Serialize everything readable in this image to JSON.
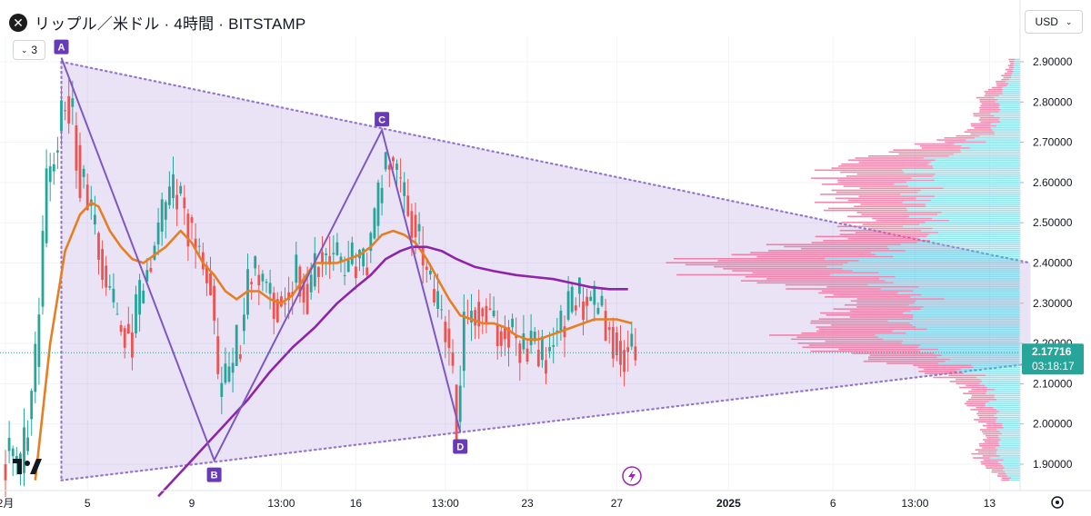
{
  "header": {
    "symbol_logo": "✕",
    "title": "リップル／米ドル · 4時間 · BITSTAMP",
    "indicator_count": "3",
    "currency": "USD"
  },
  "chart_data": {
    "type": "candlestick",
    "title": "リップル／米ドル · 4時間 · BITSTAMP",
    "ylim": [
      1.84,
      2.925
    ],
    "y_ticks": [
      "2.90000",
      "2.80000",
      "2.70000",
      "2.60000",
      "2.50000",
      "2.40000",
      "2.30000",
      "2.20000",
      "2.10000",
      "2.00000",
      "1.90000"
    ],
    "y_tick_values": [
      2.9,
      2.8,
      2.7,
      2.6,
      2.5,
      2.4,
      2.3,
      2.2,
      2.1,
      2.0,
      1.9
    ],
    "x_ticks": [
      "2月",
      "5",
      "9",
      "13:00",
      "16",
      "13:00",
      "23",
      "27",
      "2025",
      "6",
      "13:00",
      "13"
    ],
    "x_tick_index": [
      0,
      22,
      50,
      74,
      94,
      118,
      140,
      164,
      194,
      222,
      244,
      264
    ],
    "candle_count": 170,
    "current_price": "2.17716",
    "current_price_value": 2.17716,
    "countdown": "03:18:17",
    "anchors": [
      {
        "label": "A",
        "x": 15,
        "y": 2.91
      },
      {
        "label": "B",
        "x": 56,
        "y": 1.91
      },
      {
        "label": "C",
        "x": 101,
        "y": 2.73
      },
      {
        "label": "D",
        "x": 122,
        "y": 1.98
      }
    ],
    "triangle": {
      "apex_x": 275,
      "apex_y": 2.4,
      "upper_start": [
        15,
        2.9
      ],
      "lower_start": [
        15,
        1.86
      ],
      "lower_end": [
        275,
        2.15
      ]
    },
    "closes_keypoints": [
      [
        0,
        1.92
      ],
      [
        4,
        1.88
      ],
      [
        8,
        2.15
      ],
      [
        11,
        2.6
      ],
      [
        14,
        2.72
      ],
      [
        16,
        2.82
      ],
      [
        18,
        2.75
      ],
      [
        20,
        2.62
      ],
      [
        23,
        2.5
      ],
      [
        26,
        2.38
      ],
      [
        30,
        2.25
      ],
      [
        34,
        2.22
      ],
      [
        37,
        2.35
      ],
      [
        40,
        2.45
      ],
      [
        43,
        2.55
      ],
      [
        46,
        2.58
      ],
      [
        49,
        2.5
      ],
      [
        52,
        2.42
      ],
      [
        55,
        2.35
      ],
      [
        57,
        2.08
      ],
      [
        60,
        2.12
      ],
      [
        63,
        2.22
      ],
      [
        66,
        2.4
      ],
      [
        69,
        2.35
      ],
      [
        72,
        2.3
      ],
      [
        75,
        2.32
      ],
      [
        78,
        2.38
      ],
      [
        81,
        2.32
      ],
      [
        84,
        2.42
      ],
      [
        87,
        2.43
      ],
      [
        90,
        2.38
      ],
      [
        93,
        2.4
      ],
      [
        96,
        2.4
      ],
      [
        98,
        2.45
      ],
      [
        101,
        2.62
      ],
      [
        103,
        2.65
      ],
      [
        106,
        2.58
      ],
      [
        109,
        2.52
      ],
      [
        112,
        2.4
      ],
      [
        115,
        2.3
      ],
      [
        118,
        2.25
      ],
      [
        120,
        2.1
      ],
      [
        121,
        2.0
      ],
      [
        123,
        2.25
      ],
      [
        126,
        2.3
      ],
      [
        129,
        2.28
      ],
      [
        132,
        2.22
      ],
      [
        135,
        2.24
      ],
      [
        138,
        2.2
      ],
      [
        141,
        2.2
      ],
      [
        144,
        2.16
      ],
      [
        147,
        2.22
      ],
      [
        150,
        2.25
      ],
      [
        153,
        2.32
      ],
      [
        156,
        2.3
      ],
      [
        159,
        2.28
      ],
      [
        162,
        2.24
      ],
      [
        164,
        2.2
      ],
      [
        166,
        2.18
      ],
      [
        169,
        2.17716
      ]
    ],
    "ma_fast_points": [
      [
        8,
        1.86
      ],
      [
        12,
        2.2
      ],
      [
        16,
        2.43
      ],
      [
        20,
        2.52
      ],
      [
        23,
        2.55
      ],
      [
        25,
        2.54
      ],
      [
        28,
        2.48
      ],
      [
        31,
        2.44
      ],
      [
        34,
        2.41
      ],
      [
        37,
        2.4
      ],
      [
        40,
        2.42
      ],
      [
        43,
        2.44
      ],
      [
        45,
        2.46
      ],
      [
        47,
        2.48
      ],
      [
        50,
        2.45
      ],
      [
        53,
        2.4
      ],
      [
        56,
        2.37
      ],
      [
        59,
        2.33
      ],
      [
        62,
        2.31
      ],
      [
        65,
        2.33
      ],
      [
        68,
        2.33
      ],
      [
        71,
        2.31
      ],
      [
        74,
        2.3
      ],
      [
        77,
        2.32
      ],
      [
        80,
        2.36
      ],
      [
        83,
        2.4
      ],
      [
        86,
        2.4
      ],
      [
        89,
        2.4
      ],
      [
        92,
        2.41
      ],
      [
        95,
        2.42
      ],
      [
        98,
        2.44
      ],
      [
        101,
        2.47
      ],
      [
        104,
        2.48
      ],
      [
        107,
        2.47
      ],
      [
        110,
        2.45
      ],
      [
        113,
        2.41
      ],
      [
        116,
        2.36
      ],
      [
        119,
        2.31
      ],
      [
        122,
        2.27
      ],
      [
        125,
        2.26
      ],
      [
        128,
        2.25
      ],
      [
        131,
        2.25
      ],
      [
        134,
        2.24
      ],
      [
        137,
        2.22
      ],
      [
        140,
        2.21
      ],
      [
        143,
        2.21
      ],
      [
        146,
        2.22
      ],
      [
        149,
        2.23
      ],
      [
        152,
        2.24
      ],
      [
        155,
        2.25
      ],
      [
        158,
        2.26
      ],
      [
        161,
        2.26
      ],
      [
        164,
        2.26
      ],
      [
        168,
        2.25
      ]
    ],
    "ma_slow_points": [
      [
        41,
        1.82
      ],
      [
        47,
        1.88
      ],
      [
        53,
        1.94
      ],
      [
        59,
        2.0
      ],
      [
        65,
        2.06
      ],
      [
        71,
        2.13
      ],
      [
        77,
        2.19
      ],
      [
        83,
        2.24
      ],
      [
        89,
        2.3
      ],
      [
        94,
        2.34
      ],
      [
        98,
        2.37
      ],
      [
        102,
        2.41
      ],
      [
        106,
        2.43
      ],
      [
        109,
        2.44
      ],
      [
        113,
        2.44
      ],
      [
        117,
        2.43
      ],
      [
        121,
        2.41
      ],
      [
        126,
        2.39
      ],
      [
        131,
        2.38
      ],
      [
        137,
        2.37
      ],
      [
        142,
        2.365
      ],
      [
        147,
        2.36
      ],
      [
        152,
        2.35
      ],
      [
        157,
        2.34
      ],
      [
        162,
        2.335
      ],
      [
        167,
        2.335
      ]
    ],
    "volume_profile": {
      "price_step": 0.01,
      "max_width_fraction": 0.28
    }
  }
}
